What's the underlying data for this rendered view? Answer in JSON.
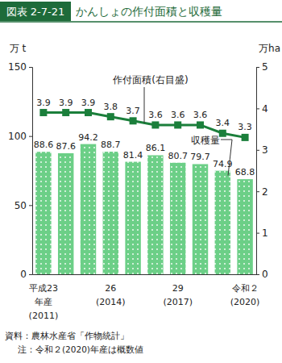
{
  "chart_data": {
    "type": "bar",
    "figure_number": "図表 2-7-21",
    "title": "かんしょの作付面積と収穫量",
    "categories": [
      "平成23\n年産\n(2011)",
      null,
      null,
      "26\n(2014)",
      null,
      null,
      "29\n(2017)",
      null,
      null,
      "令和２\n(2020)"
    ],
    "series": [
      {
        "name": "収穫量",
        "type": "bar",
        "color": "#6ccf87",
        "values": [
          88.6,
          87.6,
          94.2,
          88.7,
          81.4,
          86.1,
          80.7,
          79.7,
          74.9,
          68.8
        ]
      },
      {
        "name": "作付面積(右目盛)",
        "type": "line",
        "axis": "y2",
        "color": "#1b7f3b",
        "marker": "square",
        "values": [
          3.9,
          3.9,
          3.9,
          3.8,
          3.7,
          3.6,
          3.6,
          3.6,
          3.4,
          3.3
        ]
      }
    ],
    "ylabel": "万 t",
    "y2label": "万ha",
    "ylim": [
      0,
      150
    ],
    "yticks": [
      0,
      50,
      100,
      150
    ],
    "y2lim": [
      0,
      5
    ],
    "y2ticks": [
      0,
      1,
      2,
      3,
      4,
      5
    ],
    "data_labels": true,
    "grid": false,
    "source": "資料：農林水産省「作物統計」",
    "note": "注：令和２(2020)年産は概数値"
  }
}
